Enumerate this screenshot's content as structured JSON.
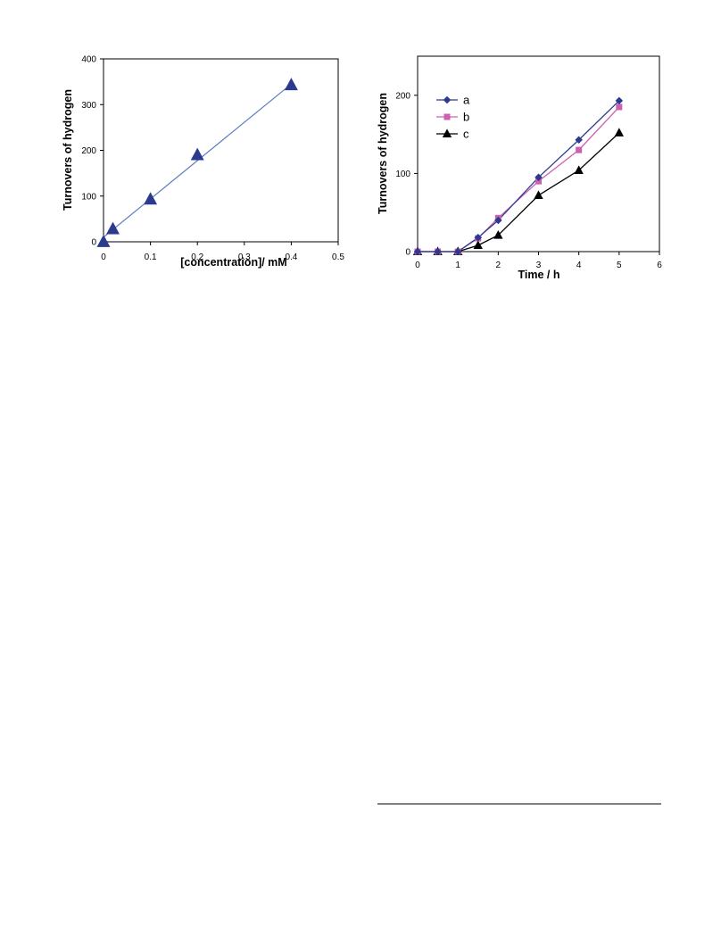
{
  "chart_data": [
    {
      "type": "scatter",
      "xlabel": "[concentration]/ mM",
      "ylabel": "Turnovers of hydrogen",
      "xlim": [
        0,
        0.5
      ],
      "ylim": [
        0,
        400
      ],
      "xticks": [
        "0",
        "0.1",
        "0.2",
        "0.3",
        "0.4",
        "0.5"
      ],
      "yticks": [
        "0",
        "100",
        "200",
        "300",
        "400"
      ],
      "grid": false,
      "series": [
        {
          "color": "#2b3a8f",
          "marker": "triangle",
          "x": [
            0,
            0.02,
            0.1,
            0.2,
            0.4
          ],
          "y": [
            0,
            28,
            93,
            190,
            343
          ]
        }
      ],
      "trendline": {
        "color": "#5b7fc0",
        "x": [
          0,
          0.4
        ],
        "y": [
          10,
          345
        ]
      }
    },
    {
      "type": "line",
      "xlabel": "Time / h",
      "ylabel": "Turnovers of hydrogen",
      "xlim": [
        0,
        6
      ],
      "ylim": [
        0,
        250
      ],
      "xticks": [
        "0",
        "1",
        "2",
        "3",
        "4",
        "5",
        "6"
      ],
      "yticks": [
        "0",
        "100",
        "200"
      ],
      "grid": false,
      "legend": "top-left",
      "x": [
        0,
        0.5,
        1,
        1.5,
        2,
        3,
        4,
        5
      ],
      "series": [
        {
          "name": "a",
          "color": "#2b3a8f",
          "marker": "diamond",
          "values": [
            0,
            0,
            0,
            18,
            40,
            95,
            143,
            193
          ]
        },
        {
          "name": "b",
          "color": "#cc5fb0",
          "marker": "square",
          "values": [
            0,
            0,
            0,
            17,
            43,
            90,
            130,
            185
          ]
        },
        {
          "name": "c",
          "color": "#000000",
          "marker": "triangle",
          "values": [
            0,
            0,
            0,
            8,
            21,
            72,
            104,
            152
          ]
        }
      ]
    }
  ]
}
